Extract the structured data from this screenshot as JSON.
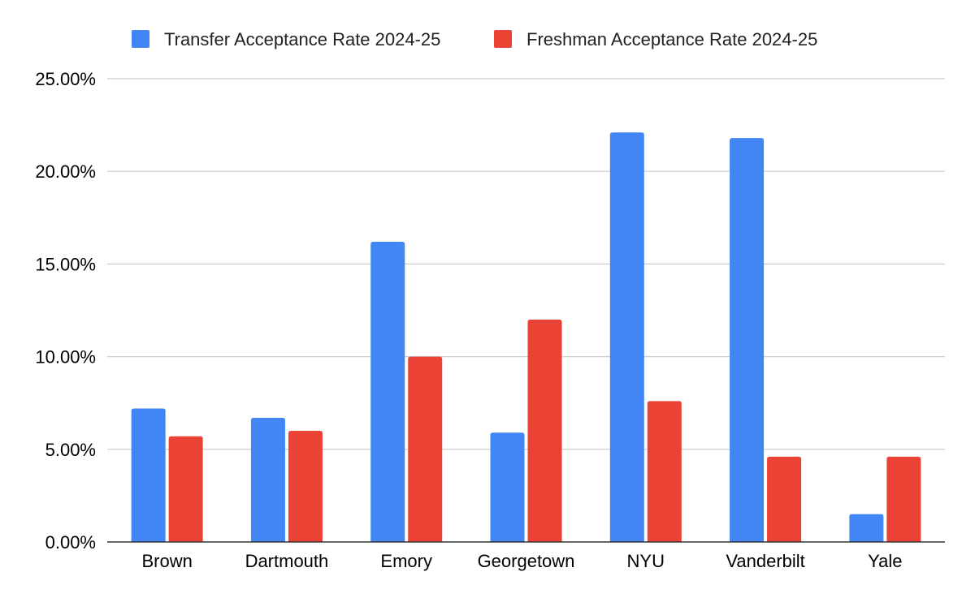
{
  "chart_data": {
    "type": "bar",
    "title": "",
    "xlabel": "",
    "ylabel": "",
    "categories": [
      "Brown",
      "Dartmouth",
      "Emory",
      "Georgetown",
      "NYU",
      "Vanderbilt",
      "Yale"
    ],
    "series": [
      {
        "name": "Transfer Acceptance Rate 2024-25",
        "color": "#4285F4",
        "values": [
          7.2,
          6.7,
          16.2,
          5.9,
          22.1,
          21.8,
          1.5
        ]
      },
      {
        "name": "Freshman Acceptance Rate 2024-25",
        "color": "#EA4335",
        "values": [
          5.7,
          6.0,
          10.0,
          12.0,
          7.6,
          4.6,
          4.6
        ]
      }
    ],
    "y_ticks": [
      "0.00%",
      "5.00%",
      "10.00%",
      "15.00%",
      "20.00%",
      "25.00%"
    ],
    "ylim": [
      0,
      25
    ],
    "grid": true,
    "legend_position": "top-center"
  }
}
